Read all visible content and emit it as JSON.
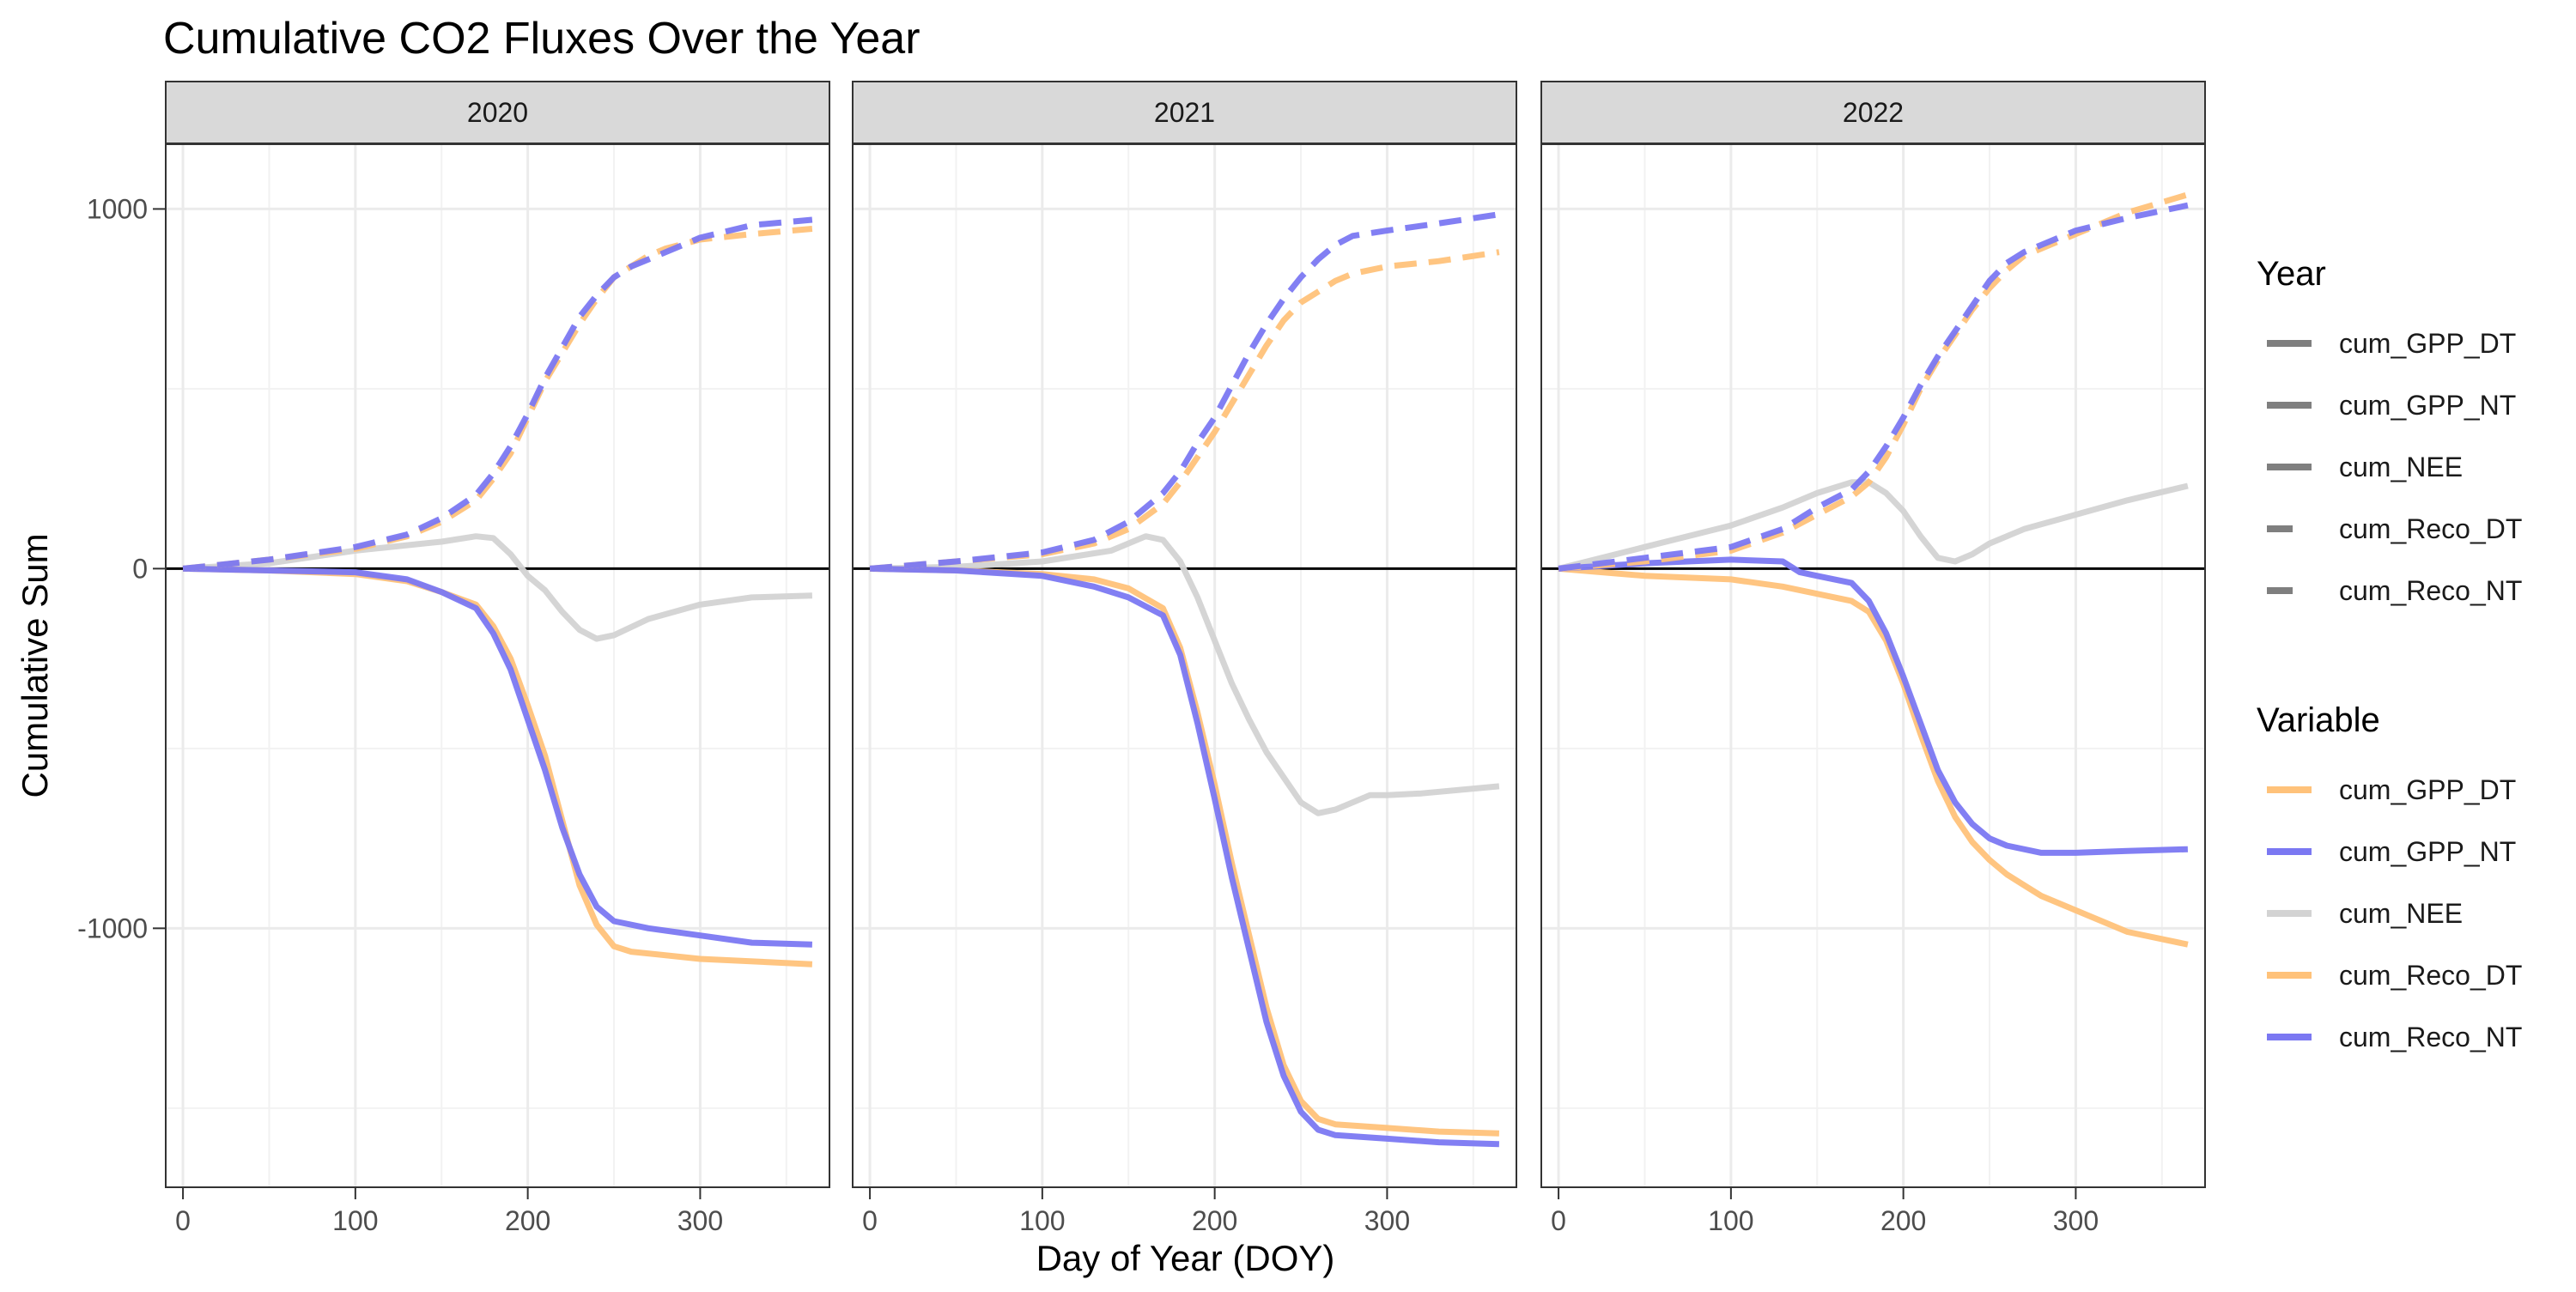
{
  "title": "Cumulative CO2 Fluxes Over the Year",
  "chart_data": {
    "type": "line",
    "title": "Cumulative CO2 Fluxes Over the Year",
    "xlabel": "Day of Year (DOY)",
    "ylabel": "Cumulative Sum",
    "xlim": [
      -10,
      375
    ],
    "ylim": [
      -1720,
      1180
    ],
    "x_ticks": [
      0,
      100,
      200,
      300
    ],
    "y_ticks": [
      1000,
      0,
      -1000
    ],
    "y_tick_labels": [
      "1000",
      "0",
      "-1000"
    ],
    "grid": true,
    "hline": 0,
    "panels": [
      "2020",
      "2021",
      "2022"
    ],
    "legend_position": "right",
    "legends": [
      {
        "title": "Year",
        "entries": [
          "cum_GPP_DT",
          "cum_GPP_NT",
          "cum_NEE",
          "cum_Reco_DT",
          "cum_Reco_NT"
        ],
        "styles": [
          "solid",
          "solid",
          "solid",
          "dashed",
          "dashed"
        ]
      },
      {
        "title": "Variable",
        "entries": [
          "cum_GPP_DT",
          "cum_GPP_NT",
          "cum_NEE",
          "cum_Reco_DT",
          "cum_Reco_NT"
        ],
        "colors": [
          "#ffc27a",
          "#7b78f2",
          "#d3d3d3",
          "#ffc27a",
          "#7b78f2"
        ]
      }
    ],
    "facets": [
      {
        "panel": "2020",
        "series": [
          {
            "name": "cum_NEE",
            "color": "#d3d3d3",
            "dash": "solid",
            "x": [
              0,
              50,
              100,
              130,
              150,
              170,
              180,
              190,
              200,
              210,
              220,
              230,
              240,
              250,
              270,
              300,
              330,
              365
            ],
            "y": [
              0,
              15,
              50,
              65,
              75,
              90,
              85,
              40,
              -20,
              -60,
              -120,
              -170,
              -195,
              -185,
              -140,
              -100,
              -80,
              -75
            ]
          },
          {
            "name": "cum_GPP_DT",
            "color": "#ffc27a",
            "dash": "solid",
            "x": [
              0,
              50,
              100,
              130,
              150,
              170,
              180,
              190,
              200,
              210,
              220,
              230,
              240,
              250,
              260,
              300,
              365
            ],
            "y": [
              0,
              -5,
              -15,
              -35,
              -65,
              -100,
              -160,
              -250,
              -380,
              -520,
              -700,
              -880,
              -990,
              -1050,
              -1065,
              -1085,
              -1100
            ]
          },
          {
            "name": "cum_GPP_NT",
            "color": "#7b78f2",
            "dash": "solid",
            "x": [
              0,
              50,
              100,
              130,
              150,
              170,
              180,
              190,
              200,
              210,
              220,
              230,
              240,
              250,
              270,
              300,
              330,
              365
            ],
            "y": [
              0,
              -5,
              -10,
              -30,
              -65,
              -110,
              -180,
              -280,
              -420,
              -560,
              -720,
              -850,
              -940,
              -980,
              -1000,
              -1020,
              -1040,
              -1045
            ]
          },
          {
            "name": "cum_Reco_DT",
            "color": "#ffc27a",
            "dash": "dashed",
            "x": [
              0,
              50,
              100,
              130,
              150,
              170,
              180,
              190,
              200,
              210,
              220,
              230,
              240,
              250,
              260,
              270,
              280,
              300,
              330,
              365
            ],
            "y": [
              0,
              25,
              55,
              90,
              130,
              190,
              250,
              320,
              420,
              520,
              600,
              680,
              750,
              810,
              840,
              870,
              890,
              915,
              930,
              945
            ]
          },
          {
            "name": "cum_Reco_NT",
            "color": "#7b78f2",
            "dash": "dashed",
            "x": [
              0,
              50,
              100,
              130,
              150,
              170,
              180,
              190,
              200,
              210,
              220,
              230,
              240,
              250,
              260,
              270,
              280,
              300,
              330,
              365
            ],
            "y": [
              0,
              25,
              60,
              95,
              140,
              205,
              265,
              340,
              430,
              530,
              615,
              700,
              760,
              810,
              840,
              860,
              880,
              920,
              955,
              970
            ]
          }
        ]
      },
      {
        "panel": "2021",
        "series": [
          {
            "name": "cum_NEE",
            "color": "#d3d3d3",
            "dash": "solid",
            "x": [
              0,
              50,
              100,
              140,
              160,
              170,
              180,
              190,
              200,
              210,
              220,
              230,
              240,
              250,
              260,
              270,
              280,
              290,
              300,
              320,
              365
            ],
            "y": [
              0,
              5,
              20,
              50,
              90,
              80,
              20,
              -80,
              -200,
              -320,
              -420,
              -510,
              -580,
              -650,
              -680,
              -670,
              -650,
              -630,
              -630,
              -625,
              -605
            ]
          },
          {
            "name": "cum_GPP_DT",
            "color": "#ffc27a",
            "dash": "solid",
            "x": [
              0,
              50,
              100,
              130,
              150,
              170,
              180,
              190,
              200,
              210,
              220,
              230,
              240,
              250,
              260,
              270,
              300,
              330,
              365
            ],
            "y": [
              0,
              -5,
              -15,
              -30,
              -55,
              -110,
              -220,
              -400,
              -600,
              -820,
              -1020,
              -1220,
              -1380,
              -1480,
              -1530,
              -1545,
              -1555,
              -1565,
              -1570
            ]
          },
          {
            "name": "cum_GPP_NT",
            "color": "#7b78f2",
            "dash": "solid",
            "x": [
              0,
              50,
              100,
              130,
              150,
              170,
              180,
              190,
              200,
              210,
              220,
              230,
              240,
              250,
              260,
              270,
              300,
              330,
              365
            ],
            "y": [
              0,
              -5,
              -20,
              -50,
              -80,
              -130,
              -240,
              -430,
              -640,
              -860,
              -1060,
              -1260,
              -1410,
              -1510,
              -1560,
              -1575,
              -1585,
              -1595,
              -1600
            ]
          },
          {
            "name": "cum_Reco_DT",
            "color": "#ffc27a",
            "dash": "dashed",
            "x": [
              0,
              50,
              100,
              130,
              150,
              170,
              180,
              190,
              200,
              210,
              220,
              230,
              240,
              250,
              260,
              270,
              280,
              300,
              330,
              365
            ],
            "y": [
              0,
              20,
              40,
              70,
              110,
              180,
              240,
              310,
              380,
              460,
              540,
              620,
              690,
              740,
              770,
              800,
              820,
              840,
              855,
              880
            ]
          },
          {
            "name": "cum_Reco_NT",
            "color": "#7b78f2",
            "dash": "dashed",
            "x": [
              0,
              50,
              100,
              130,
              150,
              170,
              180,
              190,
              200,
              210,
              220,
              230,
              240,
              250,
              260,
              270,
              280,
              300,
              330,
              365
            ],
            "y": [
              0,
              20,
              45,
              80,
              130,
              210,
              270,
              350,
              420,
              510,
              600,
              680,
              750,
              810,
              860,
              900,
              925,
              940,
              960,
              985
            ]
          }
        ]
      },
      {
        "panel": "2022",
        "series": [
          {
            "name": "cum_NEE",
            "color": "#d3d3d3",
            "dash": "solid",
            "x": [
              0,
              50,
              100,
              130,
              150,
              170,
              180,
              190,
              200,
              210,
              220,
              230,
              240,
              250,
              270,
              300,
              330,
              365
            ],
            "y": [
              0,
              60,
              120,
              170,
              210,
              240,
              240,
              210,
              160,
              90,
              30,
              20,
              40,
              70,
              110,
              150,
              190,
              230
            ]
          },
          {
            "name": "cum_GPP_DT",
            "color": "#ffc27a",
            "dash": "solid",
            "x": [
              0,
              50,
              100,
              130,
              150,
              170,
              180,
              190,
              200,
              210,
              220,
              230,
              240,
              250,
              260,
              270,
              280,
              300,
              330,
              365
            ],
            "y": [
              0,
              -20,
              -30,
              -50,
              -70,
              -90,
              -120,
              -200,
              -320,
              -460,
              -590,
              -690,
              -760,
              -810,
              -850,
              -880,
              -910,
              -950,
              -1010,
              -1045
            ]
          },
          {
            "name": "cum_GPP_NT",
            "color": "#7b78f2",
            "dash": "solid",
            "x": [
              0,
              50,
              100,
              130,
              140,
              150,
              170,
              180,
              190,
              200,
              210,
              220,
              230,
              240,
              250,
              260,
              280,
              300,
              330,
              365
            ],
            "y": [
              0,
              15,
              25,
              20,
              -10,
              -20,
              -40,
              -90,
              -180,
              -300,
              -430,
              -560,
              -650,
              -710,
              -750,
              -770,
              -790,
              -790,
              -785,
              -780
            ]
          },
          {
            "name": "cum_Reco_DT",
            "color": "#ffc27a",
            "dash": "dashed",
            "x": [
              0,
              50,
              100,
              130,
              150,
              170,
              180,
              190,
              200,
              210,
              220,
              230,
              240,
              250,
              260,
              270,
              280,
              300,
              330,
              365
            ],
            "y": [
              0,
              20,
              50,
              100,
              150,
              200,
              240,
              310,
              400,
              500,
              580,
              650,
              720,
              780,
              830,
              870,
              890,
              930,
              990,
              1040
            ]
          },
          {
            "name": "cum_Reco_NT",
            "color": "#7b78f2",
            "dash": "dashed",
            "x": [
              0,
              50,
              100,
              130,
              150,
              170,
              180,
              190,
              200,
              210,
              220,
              230,
              240,
              250,
              260,
              270,
              280,
              300,
              330,
              365
            ],
            "y": [
              0,
              30,
              60,
              110,
              170,
              220,
              270,
              340,
              420,
              510,
              590,
              660,
              730,
              800,
              850,
              880,
              900,
              940,
              975,
              1010
            ]
          }
        ]
      }
    ]
  }
}
